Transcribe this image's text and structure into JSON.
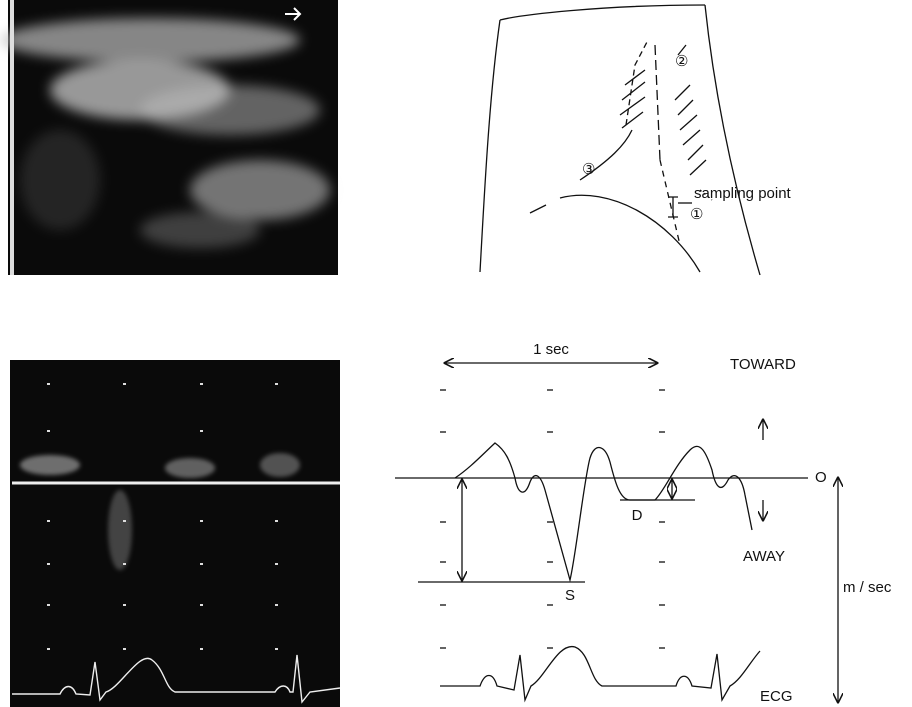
{
  "anatomy_diagram": {
    "markers": [
      "①",
      "②",
      "③"
    ],
    "sampling_label": "sampling point"
  },
  "doppler_diagram": {
    "time_scale": "1 sec",
    "toward": "TOWARD",
    "away": "AWAY",
    "zero": "O",
    "diastolic": "D",
    "systolic": "S",
    "unit": "m / sec",
    "ecg": "ECG"
  }
}
